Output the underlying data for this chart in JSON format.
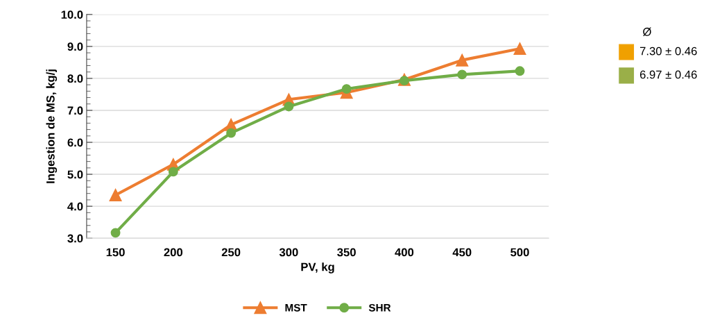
{
  "chart_data": [
    {
      "type": "line",
      "xlabel": "PV, kg",
      "ylabel": "Ingestion de MS, kg/j",
      "categories": [
        "150",
        "200",
        "250",
        "300",
        "350",
        "400",
        "450",
        "500"
      ],
      "series": [
        {
          "name": "MST",
          "color": "#ed7d31",
          "marker": "triangle",
          "values": [
            4.35,
            5.31,
            6.55,
            7.34,
            7.56,
            7.96,
            8.57,
            8.93
          ]
        },
        {
          "name": "SHR",
          "color": "#70ad47",
          "marker": "circle",
          "values": [
            3.17,
            5.08,
            6.29,
            7.12,
            7.67,
            7.93,
            8.12,
            8.23
          ]
        }
      ],
      "ylim": [
        3,
        10
      ],
      "yticks": [
        {
          "value": 3,
          "label": "3.0"
        },
        {
          "value": 4,
          "label": "4.0"
        },
        {
          "value": 5,
          "label": "5.0"
        },
        {
          "value": 6,
          "label": "6.0"
        },
        {
          "value": 7,
          "label": "7.0"
        },
        {
          "value": 8,
          "label": "8.0"
        },
        {
          "value": 9,
          "label": "9.0"
        },
        {
          "value": 10,
          "label": "10.0"
        }
      ],
      "grid": "y",
      "legend": "bottom"
    },
    {
      "type": "other",
      "title": "Ø",
      "categories": [
        "7.30 ± 0.46",
        "6.97 ± 0.46"
      ],
      "colors": [
        "#f0a000",
        "#9aaf48"
      ]
    }
  ]
}
